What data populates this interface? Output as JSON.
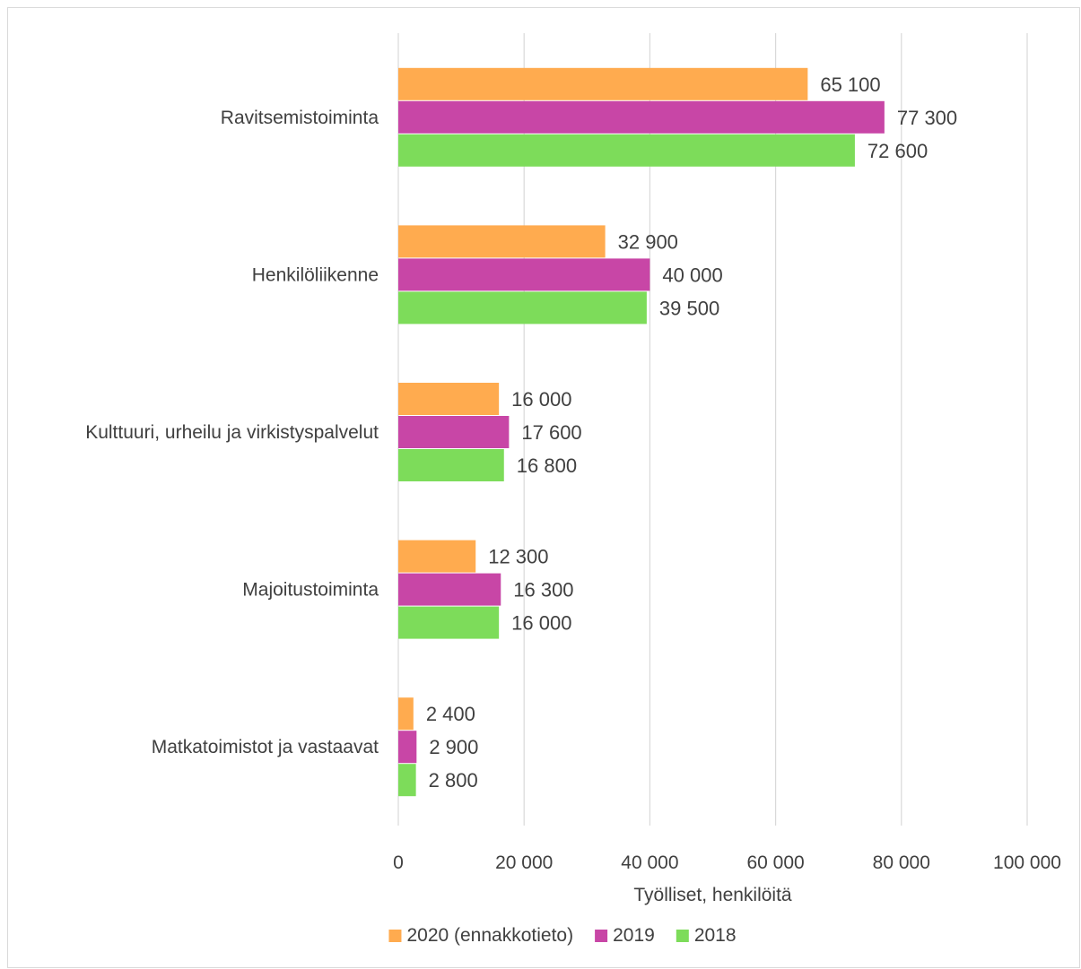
{
  "chart_data": {
    "type": "bar",
    "orientation": "horizontal",
    "categories": [
      "Ravitsemistoiminta",
      "Henkilöliikenne",
      "Kulttuuri, urheilu ja virkistyspalvelut",
      "Majoitustoiminta",
      "Matkatoimistot ja vastaavat"
    ],
    "series": [
      {
        "name": "2020 (ennakkotieto)",
        "color": "#ffab4f",
        "values": [
          65100,
          32900,
          16000,
          12300,
          2400
        ],
        "labels": [
          "65 100",
          "32 900",
          "16 000",
          "12 300",
          "2 400"
        ]
      },
      {
        "name": "2019",
        "color": "#c846a6",
        "values": [
          77300,
          40000,
          17600,
          16300,
          2900
        ],
        "labels": [
          "77 300",
          "40 000",
          "17 600",
          "16 300",
          "2 900"
        ]
      },
      {
        "name": "2018",
        "color": "#7ddc5a",
        "values": [
          72600,
          39500,
          16800,
          16000,
          2800
        ],
        "labels": [
          "72 600",
          "39 500",
          "16 800",
          "16 000",
          "2 800"
        ]
      }
    ],
    "xlim": [
      0,
      100000
    ],
    "xticks": [
      0,
      20000,
      40000,
      60000,
      80000,
      100000
    ],
    "xtick_labels": [
      "0",
      "20 000",
      "40 000",
      "60 000",
      "80 000",
      "100 000"
    ],
    "xlabel": "Työlliset, henkilöitä",
    "ylabel": "",
    "title": "",
    "grid": "vertical",
    "legend_position": "bottom",
    "colors": {
      "gridline": "#d9d9d9",
      "text": "#404040"
    }
  }
}
